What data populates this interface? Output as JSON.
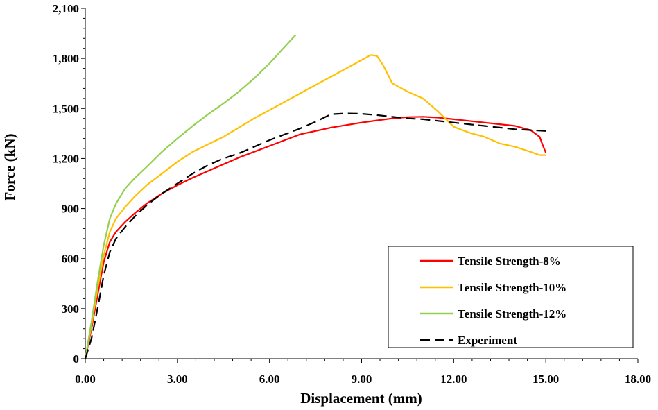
{
  "chart_data": {
    "type": "line",
    "title": "",
    "xlabel": "Displacement (mm)",
    "ylabel": "Force (kN)",
    "xlim": [
      0,
      18
    ],
    "ylim": [
      0,
      2100
    ],
    "xticks": [
      0,
      3,
      6,
      9,
      12,
      15,
      18
    ],
    "xtick_labels": [
      "0.00",
      "3.00",
      "6.00",
      "9.00",
      "12.00",
      "15.00",
      "18.00"
    ],
    "yticks": [
      0,
      300,
      600,
      900,
      1200,
      1500,
      1800,
      2100
    ],
    "ytick_labels": [
      "0",
      "300",
      "600",
      "900",
      "1,200",
      "1,500",
      "1,800",
      "2,100"
    ],
    "grid": false,
    "legend_position": "bottom-right",
    "series": [
      {
        "name": "Tensile Strength-8%",
        "color": "#ff0000",
        "dash": "solid",
        "x": [
          0,
          0.2,
          0.4,
          0.6,
          0.8,
          1.0,
          1.3,
          1.6,
          2.0,
          2.5,
          3.0,
          3.5,
          4.0,
          4.5,
          5.0,
          5.5,
          6.0,
          6.5,
          7.0,
          7.5,
          8.0,
          8.5,
          9.0,
          9.5,
          10.0,
          10.5,
          11.0,
          11.5,
          12.0,
          12.5,
          13.0,
          13.5,
          14.0,
          14.5,
          14.8,
          14.9,
          15.0
        ],
        "y": [
          0,
          180,
          380,
          580,
          700,
          760,
          820,
          870,
          930,
          990,
          1040,
          1085,
          1125,
          1165,
          1205,
          1240,
          1275,
          1310,
          1345,
          1365,
          1385,
          1400,
          1415,
          1428,
          1440,
          1448,
          1450,
          1445,
          1435,
          1425,
          1415,
          1405,
          1395,
          1370,
          1330,
          1280,
          1235
        ]
      },
      {
        "name": "Tensile Strength-10%",
        "color": "#ffc000",
        "dash": "solid",
        "x": [
          0,
          0.2,
          0.4,
          0.6,
          0.8,
          1.0,
          1.3,
          1.6,
          2.0,
          2.5,
          3.0,
          3.5,
          4.0,
          4.5,
          5.0,
          5.5,
          6.0,
          6.5,
          7.0,
          7.5,
          8.0,
          8.5,
          9.0,
          9.3,
          9.5,
          9.7,
          10.0,
          10.5,
          11.0,
          11.5,
          12.0,
          12.5,
          13.0,
          13.5,
          14.0,
          14.5,
          14.8,
          15.0
        ],
        "y": [
          0,
          200,
          420,
          620,
          760,
          840,
          910,
          970,
          1040,
          1110,
          1180,
          1240,
          1285,
          1330,
          1385,
          1440,
          1490,
          1540,
          1590,
          1640,
          1690,
          1740,
          1790,
          1820,
          1815,
          1760,
          1650,
          1600,
          1560,
          1480,
          1390,
          1355,
          1330,
          1290,
          1270,
          1240,
          1220,
          1220
        ]
      },
      {
        "name": "Tensile Strength-12%",
        "color": "#92d050",
        "dash": "solid",
        "x": [
          0,
          0.2,
          0.4,
          0.6,
          0.8,
          1.0,
          1.3,
          1.6,
          2.0,
          2.5,
          3.0,
          3.5,
          4.0,
          4.5,
          5.0,
          5.5,
          6.0,
          6.5,
          6.85
        ],
        "y": [
          0,
          220,
          460,
          680,
          840,
          930,
          1020,
          1080,
          1150,
          1240,
          1320,
          1395,
          1465,
          1530,
          1600,
          1680,
          1770,
          1870,
          1940
        ]
      },
      {
        "name": "Experiment",
        "color": "#000000",
        "dash": "dashed",
        "x": [
          0,
          0.2,
          0.4,
          0.6,
          0.8,
          1.0,
          1.3,
          1.6,
          2.0,
          2.5,
          3.0,
          3.5,
          4.0,
          4.5,
          5.0,
          5.5,
          6.0,
          6.5,
          7.0,
          7.5,
          8.0,
          8.5,
          9.0,
          9.5,
          10.0,
          10.5,
          11.0,
          11.5,
          12.0,
          12.5,
          13.0,
          13.5,
          14.0,
          14.5,
          15.0
        ],
        "y": [
          0,
          120,
          300,
          500,
          640,
          720,
          790,
          850,
          920,
          990,
          1050,
          1110,
          1160,
          1200,
          1230,
          1270,
          1310,
          1345,
          1380,
          1420,
          1465,
          1470,
          1468,
          1460,
          1450,
          1440,
          1435,
          1425,
          1415,
          1405,
          1395,
          1385,
          1375,
          1370,
          1365
        ]
      }
    ]
  }
}
